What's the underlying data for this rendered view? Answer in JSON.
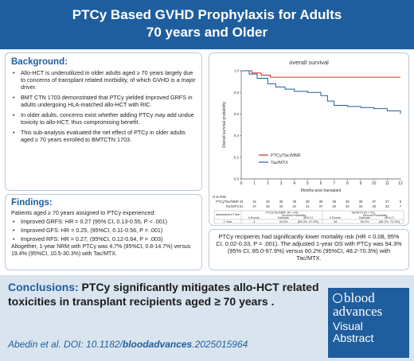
{
  "header": {
    "title_line1": "PTCy Based GVHD Prophylaxis for Adults",
    "title_line2": "70 years and Older"
  },
  "background": {
    "heading": "Background:",
    "bullets": [
      "Allo-HCT is underutilized in older adults aged ≥ 70 years largely due to concerns of transplant related morbidity, of which GVHD is a major driver.",
      "BMT CTN 1703 demonstrated that PTCy yielded improved GRFS in adults undergoing HLA-matched allo-HCT with RIC.",
      "In older adults, concerns exist whether adding PTCy may add undue toxicity to allo-HCT, thus compromising benefit.",
      "This sub-analysis evaluated the net effect of PTCy in older adults aged ≥ 70 years enrolled to BMTCTN 1703."
    ]
  },
  "findings": {
    "heading": "Findings:",
    "intro": "Patients aged ≥ 70 years assigned to PTCy experienced:",
    "bullets": [
      "Improved GRFS: HR = 0.27 (95% CI,  0.13-0.55, P < .001)",
      "Improved GFS: HR = 0.25, (95%CI, 0.11-0.56, P = .001)",
      "Improved RFS: HR = 0.27, (95%CI, 0.12-0.64, P = .003)"
    ],
    "tail": "Altogether, 1-year NRM with PTCy was 4.7% (95%CI, 0.8-14.7%) versus 19.4% (95%CI, 10.5-30.3%) with Tac/MTX."
  },
  "survival": {
    "title": "overall survival",
    "ylabel": "Overall survival probability",
    "xlabel": "Months post transplant",
    "legend": [
      "PTCy/Tac/MMF",
      "Tac/MTX"
    ],
    "risk_title": "N at Risk",
    "risk_rows": [
      {
        "name": "PTCy/Tac/MMF",
        "values": [
          "43",
          "41",
          "39",
          "39",
          "39",
          "39",
          "39",
          "39",
          "39",
          "38",
          "37",
          "37",
          "5"
        ]
      },
      {
        "name": "Tac/MTX",
        "values": [
          "51",
          "47",
          "45",
          "43",
          "41",
          "41",
          "37",
          "34",
          "34",
          "34",
          "33",
          "33",
          "7"
        ]
      }
    ],
    "table": {
      "col_time": "Assessment Time",
      "group1": "PTCy/Tac/MMF (N = 43)",
      "group2": "Tac/MTX (N = 51)",
      "sub_prob": "Survival Probability",
      "sub_events": "# Events",
      "sub_est": "Estimate",
      "sub_ci": "95% CI",
      "row_time": "1 Year",
      "g1_events": "4",
      "g1_est": "94.3%",
      "g1_ci": "(85.0%, 97.9%)",
      "g2_events": "18",
      "g2_est": "60.2%",
      "g2_ci": "(48.2%, 70.3%)"
    },
    "summary": "PTCy recipients had significantly lower mortality risk (HR = 0.08, 95% CI, 0.02-0.33, P = .001). The adjusted 1-year OS with PTCy was 94.3% (95% CI, 85.0-97.9%) versus 60.2% (95%CI, 48.2-70.3%) with Tac/MTX."
  },
  "chart_data": {
    "type": "line",
    "title": "overall survival",
    "xlabel": "Months post transplant",
    "ylabel": "Overall survival probability",
    "xlim": [
      0,
      12
    ],
    "ylim": [
      0,
      1
    ],
    "xticks": [
      0,
      1,
      2,
      3,
      4,
      5,
      6,
      7,
      8,
      9,
      10,
      11,
      12
    ],
    "yticks": [
      0,
      0.2,
      0.4,
      0.6,
      0.8,
      1.0
    ],
    "legend_position": "lower-left",
    "series": [
      {
        "name": "PTCy/Tac/MMF",
        "color": "#d62728",
        "x": [
          0,
          0.8,
          1.5,
          2.2,
          4,
          12
        ],
        "y": [
          1.0,
          0.98,
          0.96,
          0.94,
          0.94,
          0.94
        ]
      },
      {
        "name": "Tac/MTX",
        "color": "#1f5e9e",
        "x": [
          0,
          0.6,
          1.2,
          2,
          2.6,
          3.3,
          4,
          5,
          6,
          6.5,
          7,
          8,
          9,
          10,
          11,
          12
        ],
        "y": [
          1.0,
          0.97,
          0.93,
          0.88,
          0.85,
          0.83,
          0.81,
          0.8,
          0.77,
          0.72,
          0.68,
          0.67,
          0.66,
          0.65,
          0.63,
          0.6
        ]
      }
    ]
  },
  "conclusion": {
    "label": "Conclusions:",
    "text": " PTCy significantly mitigates allo-HCT related toxicities in transplant recipients aged ≥ 70 years ."
  },
  "citation": {
    "prefix": "Abedin et al. DOI: 10.1182/",
    "journal": "bloodadvances",
    "suffix": ".2025015964"
  },
  "logo": {
    "line1": "blood",
    "line2": "advances",
    "line3": "Visual",
    "line4": "Abstract"
  }
}
